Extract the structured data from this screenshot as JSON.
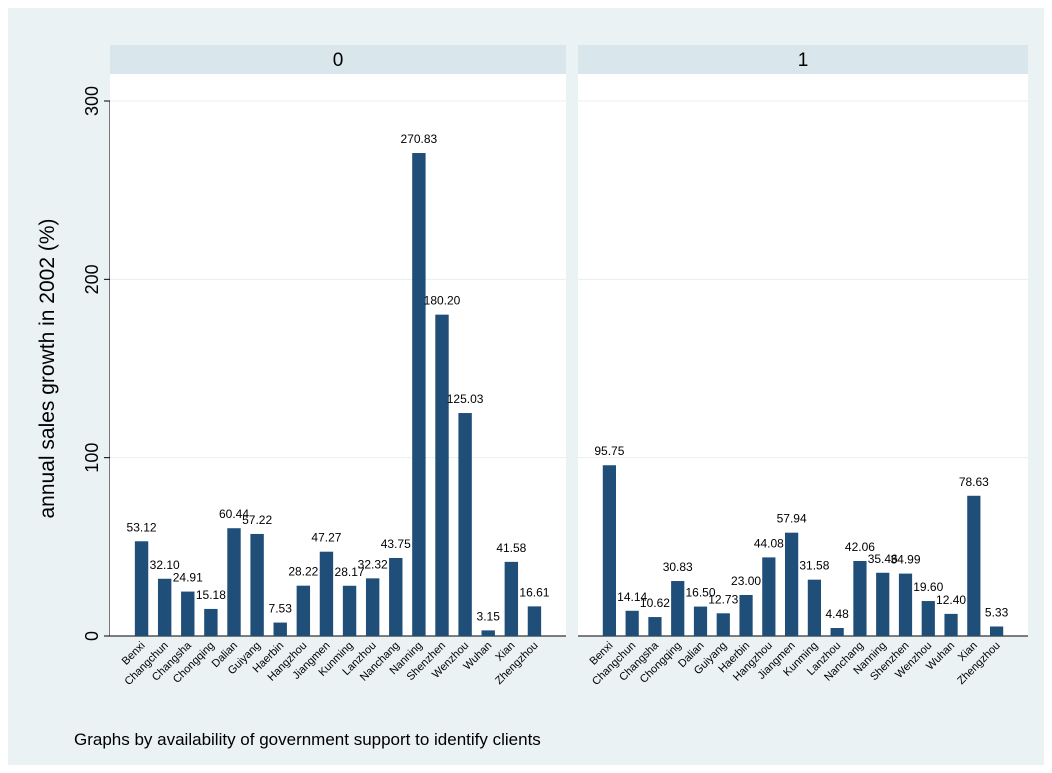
{
  "chart_data": {
    "type": "bar",
    "ylabel": "annual sales growth in 2002 (%)",
    "ylim": [
      0,
      300
    ],
    "yticks": [
      0,
      100,
      200,
      300
    ],
    "grid": true,
    "colors": {
      "bar": "#1f4e79",
      "background": "#eaf2f3",
      "plot": "#ffffff",
      "strip": "#d9e6eb",
      "grid": "#e8eef0"
    },
    "note": "Graphs by availability of government support to identify clients",
    "panels": [
      {
        "label": "0",
        "categories": [
          "Benxi",
          "Changchun",
          "Changsha",
          "Chongqing",
          "Dalian",
          "Guiyang",
          "Haerbin",
          "Hangzhou",
          "Jiangmen",
          "Kunming",
          "Lanzhou",
          "Nanchang",
          "Nanning",
          "Shenzhen",
          "Wenzhou",
          "Wuhan",
          "Xian",
          "Zhengzhou"
        ],
        "values": [
          53.12,
          32.1,
          24.91,
          15.18,
          60.44,
          57.22,
          7.53,
          28.22,
          47.27,
          28.17,
          32.32,
          43.75,
          270.83,
          180.2,
          125.03,
          3.15,
          41.58,
          16.61
        ],
        "labels": [
          "53.12",
          "32.10",
          "24.91",
          "15.18",
          "60.44",
          "57.22",
          "7.53",
          "28.22",
          "47.27",
          "28.17",
          "32.32",
          "43.75",
          "270.83",
          "180.20",
          "125.03",
          "3.15",
          "41.58",
          "16.61"
        ]
      },
      {
        "label": "1",
        "categories": [
          "Benxi",
          "Changchun",
          "Changsha",
          "Chongqing",
          "Dalian",
          "Guiyang",
          "Haerbin",
          "Hangzhou",
          "Jiangmen",
          "Kunming",
          "Lanzhou",
          "Nanchang",
          "Nanning",
          "Shenzhen",
          "Wenzhou",
          "Wuhan",
          "Xian",
          "Zhengzhou"
        ],
        "values": [
          95.75,
          14.14,
          10.62,
          30.83,
          16.5,
          12.73,
          23.0,
          44.08,
          57.94,
          31.58,
          4.48,
          42.06,
          35.46,
          34.99,
          19.6,
          12.4,
          78.63,
          5.33
        ],
        "labels": [
          "95.75",
          "14.14",
          "10.62",
          "30.83",
          "16.50",
          "12.73",
          "23.00",
          "44.08",
          "57.94",
          "31.58",
          "4.48",
          "42.06",
          "35.46",
          "34.99",
          "19.60",
          "12.40",
          "78.63",
          "5.33"
        ]
      }
    ]
  }
}
